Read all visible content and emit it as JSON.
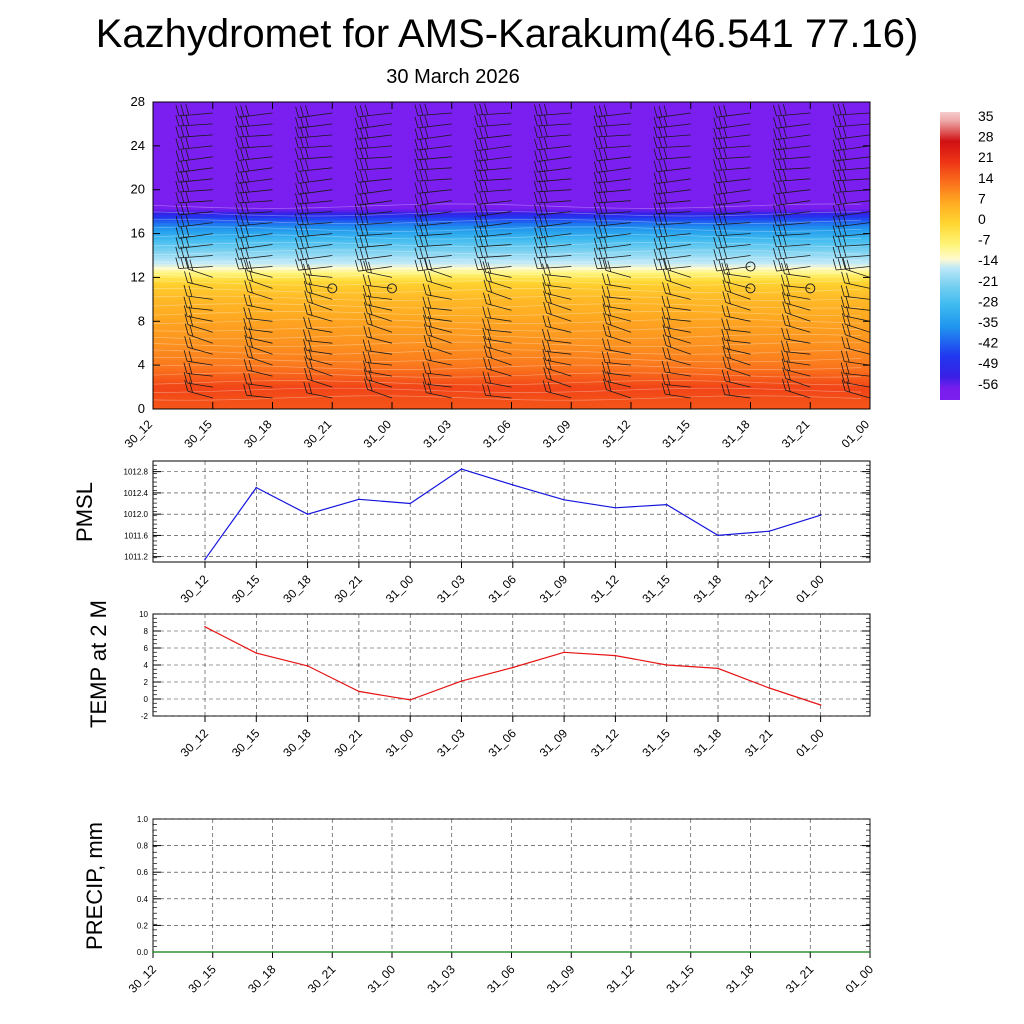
{
  "page": {
    "title": "Kazhydromet for AMS-Karakum(46.541 77.16)",
    "subtitle": "30 March 2026"
  },
  "chart_data": [
    {
      "type": "heatmap",
      "name": "vertical-cross-section",
      "x_labels": [
        "30_12",
        "30_15",
        "30_18",
        "30_21",
        "31_00",
        "31_03",
        "31_06",
        "31_09",
        "31_12",
        "31_15",
        "31_18",
        "31_21",
        "01_00"
      ],
      "ylim": [
        0,
        28
      ],
      "y_ticks": [
        0,
        4,
        8,
        12,
        16,
        20,
        24,
        28
      ],
      "temperature_profile_C": [
        [
          0,
          17
        ],
        [
          2,
          19
        ],
        [
          4,
          13
        ],
        [
          6,
          10
        ],
        [
          8,
          8
        ],
        [
          10,
          5
        ],
        [
          11.5,
          1
        ],
        [
          12.5,
          -8
        ],
        [
          13,
          -13
        ],
        [
          14,
          -18
        ],
        [
          15,
          -24
        ],
        [
          16,
          -31
        ],
        [
          17,
          -39
        ],
        [
          17.5,
          -45
        ],
        [
          18,
          -53
        ],
        [
          18.5,
          -58
        ],
        [
          19,
          -59
        ],
        [
          20,
          -60
        ],
        [
          24,
          -60
        ],
        [
          28,
          -60
        ]
      ],
      "colorbar": {
        "labels": [
          "35",
          "28",
          "21",
          "14",
          "7",
          "0",
          "-7",
          "-14",
          "-21",
          "-28",
          "-35",
          "-42",
          "-49",
          "-56"
        ],
        "range": [
          -60,
          38
        ]
      },
      "calm_markers": [
        {
          "x": "30_21",
          "y": 11
        },
        {
          "x": "31_00",
          "y": 11
        },
        {
          "x": "31_18",
          "y": 13
        },
        {
          "x": "31_18",
          "y": 11
        },
        {
          "x": "31_21",
          "y": 11
        }
      ]
    },
    {
      "type": "line",
      "name": "pmsl",
      "ylabel": "PMSL",
      "categories": [
        "30_12",
        "30_15",
        "30_18",
        "30_21",
        "31_00",
        "31_03",
        "31_06",
        "31_09",
        "31_12",
        "31_15",
        "31_18",
        "31_21",
        "01_00"
      ],
      "values": [
        1011.15,
        1012.5,
        1012.0,
        1012.28,
        1012.2,
        1012.85,
        1012.55,
        1012.27,
        1012.12,
        1012.18,
        1011.6,
        1011.68,
        1011.98
      ],
      "ylim": [
        1011.1,
        1013.0
      ],
      "y_ticks": [
        1011.2,
        1011.6,
        1012.0,
        1012.4,
        1012.8
      ],
      "y_tick_labels": [
        "1011.2",
        "1011.6",
        "1012.0",
        "1012.4",
        "1012.8"
      ],
      "color": "#1414dc"
    },
    {
      "type": "line",
      "name": "temp-2m",
      "ylabel": "TEMP at 2 M",
      "categories": [
        "30_12",
        "30_15",
        "30_18",
        "30_21",
        "31_00",
        "31_03",
        "31_06",
        "31_09",
        "31_12",
        "31_15",
        "31_18",
        "31_21",
        "01_00"
      ],
      "values": [
        8.5,
        5.4,
        3.9,
        0.9,
        -0.1,
        2.1,
        3.7,
        5.5,
        5.1,
        4.0,
        3.6,
        1.3,
        -0.7
      ],
      "ylim": [
        -2,
        10
      ],
      "y_ticks": [
        -2,
        0,
        2,
        4,
        6,
        8,
        10
      ],
      "y_tick_labels": [
        "-2",
        "0",
        "2",
        "4",
        "6",
        "8",
        "10"
      ],
      "color": "#e61414"
    },
    {
      "type": "line",
      "name": "precip",
      "ylabel": "PRECIP, mm",
      "categories": [
        "30_12",
        "30_15",
        "30_18",
        "30_21",
        "31_00",
        "31_03",
        "31_06",
        "31_09",
        "31_12",
        "31_15",
        "31_18",
        "31_21",
        "01_00"
      ],
      "values": [
        0,
        0,
        0,
        0,
        0,
        0,
        0,
        0,
        0,
        0,
        0,
        0,
        0
      ],
      "ylim": [
        0,
        1
      ],
      "y_ticks": [
        0,
        0.2,
        0.4,
        0.6,
        0.8,
        1.0
      ],
      "y_tick_labels": [
        "0.0",
        "0.2",
        "0.4",
        "0.6",
        "0.8",
        "1.0"
      ],
      "color": "#0a7a0a"
    }
  ]
}
